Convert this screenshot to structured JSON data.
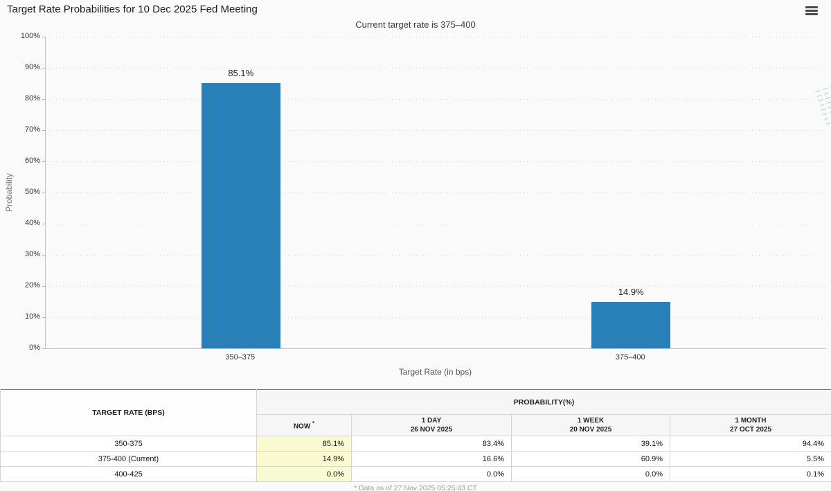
{
  "header": {
    "title": "Target Rate Probabilities for 10 Dec 2025 Fed Meeting",
    "subtitle": "Current target rate is 375–400"
  },
  "chart_data": {
    "type": "bar",
    "title": "Target Rate Probabilities for 10 Dec 2025 Fed Meeting",
    "categories": [
      "350–375",
      "375–400"
    ],
    "values": [
      85.1,
      14.9
    ],
    "value_labels": [
      "85.1%",
      "14.9%"
    ],
    "xlabel": "Target Rate (in bps)",
    "ylabel": "Probability",
    "ylim": [
      0,
      100
    ],
    "ytick_step": 10,
    "ytick_suffix": "%",
    "grid": "dotted-horizontal",
    "legend": "none",
    "bar_color": "#2980b9",
    "watermark_letter": "Q"
  },
  "table": {
    "col1_header": "TARGET RATE (BPS)",
    "group_header": "PROBABILITY(%)",
    "asterisk": "*",
    "columns": [
      {
        "label": "NOW",
        "sub": ""
      },
      {
        "label": "1 DAY",
        "sub": "26 NOV 2025"
      },
      {
        "label": "1 WEEK",
        "sub": "20 NOV 2025"
      },
      {
        "label": "1 MONTH",
        "sub": "27 OCT 2025"
      }
    ],
    "rows": [
      {
        "rate": "350-375",
        "now": "85.1%",
        "day": "83.4%",
        "week": "39.1%",
        "month": "94.4%"
      },
      {
        "rate": "375-400 (Current)",
        "now": "14.9%",
        "day": "16.6%",
        "week": "60.9%",
        "month": "5.5%"
      },
      {
        "rate": "400-425",
        "now": "0.0%",
        "day": "0.0%",
        "week": "0.0%",
        "month": "0.1%"
      }
    ],
    "highlight_color": "#fafad2"
  },
  "footnote": "* Data as of 27 Nov 2025 05:25:43 CT"
}
